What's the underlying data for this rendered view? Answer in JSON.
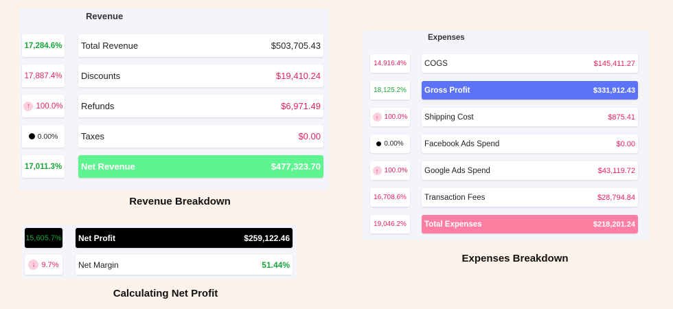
{
  "revenue": {
    "title": "Revenue",
    "caption": "Revenue Breakdown",
    "rows": [
      {
        "change": "17,284.6%",
        "label": "Total Revenue",
        "value": "$503,705.43"
      },
      {
        "change": "17,887.4%",
        "label": "Discounts",
        "value": "$19,410.24"
      },
      {
        "change": "100.0%",
        "label": "Refunds",
        "value": "$6,971.49"
      },
      {
        "change": "0.00%",
        "label": "Taxes",
        "value": "$0.00"
      },
      {
        "change": "17,011.3%",
        "label": "Net Revenue",
        "value": "$477,323.70"
      }
    ]
  },
  "netprofit": {
    "caption": "Calculating Net Profit",
    "rows": [
      {
        "change": "15,605.7%",
        "label": "Net Profit",
        "value": "$259,122.46"
      },
      {
        "change": "9.7%",
        "label": "Net Margin",
        "value": "51.44%"
      }
    ]
  },
  "expenses": {
    "title": "Expenses",
    "caption": "Expenses Breakdown",
    "rows": [
      {
        "change": "14,916.4%",
        "label": "COGS",
        "value": "$145,411.27"
      },
      {
        "change": "18,125.2%",
        "label": "Gross Profit",
        "value": "$331,912.43"
      },
      {
        "change": "100.0%",
        "label": "Shipping Cost",
        "value": "$875.41"
      },
      {
        "change": "0.00%",
        "label": "Facebook Ads Spend",
        "value": "$0.00"
      },
      {
        "change": "100.0%",
        "label": "Google Ads Spend",
        "value": "$43,119.72"
      },
      {
        "change": "16,708.6%",
        "label": "Transaction Fees",
        "value": "$28,794.84"
      },
      {
        "change": "19,046.2%",
        "label": "Total Expenses",
        "value": "$218,201.24"
      }
    ]
  },
  "icons": {
    "up": "up-arrow-icon",
    "down": "down-arrow-icon",
    "dot": "dot-icon"
  },
  "colors": {
    "positive": "#1aa53a",
    "negative": "#e8215a",
    "net_revenue": "#5ef590",
    "gross_profit": "#5d73f7",
    "total_expenses": "#ff7fa2",
    "net_profit": "#000000"
  }
}
